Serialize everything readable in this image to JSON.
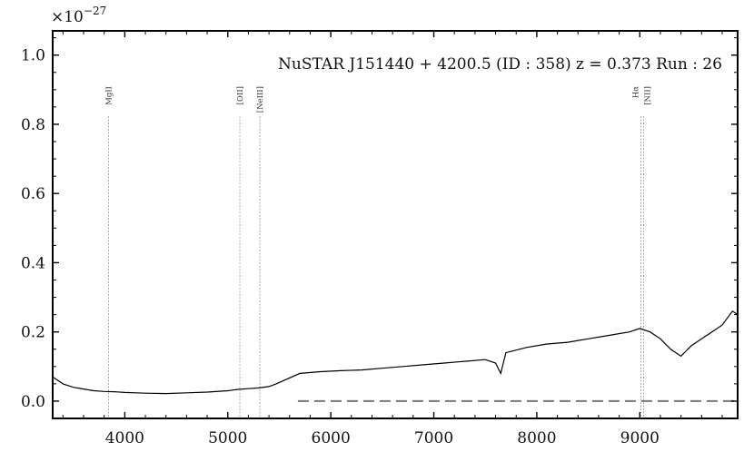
{
  "chart_data": {
    "type": "line",
    "title": "NuSTAR J151440 + 4200.5 (ID : 358)   z = 0.373   Run : 26",
    "xlabel": "",
    "ylabel": "",
    "y_multiplier": "×10",
    "y_multiplier_exponent": "−27",
    "xlim": [
      3300,
      9950
    ],
    "ylim": [
      -0.05,
      1.07
    ],
    "x_ticks": [
      4000,
      5000,
      6000,
      7000,
      8000,
      9000
    ],
    "x_tick_labels": [
      "4000",
      "5000",
      "6000",
      "7000",
      "8000",
      "9000"
    ],
    "y_ticks": [
      0.0,
      0.2,
      0.4,
      0.6,
      0.8,
      1.0
    ],
    "y_tick_labels": [
      "0.0",
      "0.2",
      "0.4",
      "0.6",
      "0.8",
      "1.0"
    ],
    "grid": false,
    "emission_lines": [
      {
        "label": "MgII",
        "x": 3842
      },
      {
        "label": "[OII]",
        "x": 5117
      },
      {
        "label": "[NeIII]",
        "x": 5311
      },
      {
        "label": "Hα",
        "x": 9011
      },
      {
        "label": "[NII]",
        "x": 9038
      }
    ],
    "series": [
      {
        "style": "solid",
        "color": "#000000",
        "x": [
          3300,
          3350,
          3400,
          3450,
          3500,
          3600,
          3700,
          3800,
          3900,
          4000,
          4200,
          4400,
          4600,
          4800,
          5000,
          5100,
          5200,
          5300,
          5400,
          5470,
          5700,
          5900,
          6100,
          6300,
          6500,
          6700,
          6900,
          7100,
          7300,
          7500,
          7600,
          7650,
          7700,
          7900,
          8100,
          8300,
          8500,
          8700,
          8900,
          9000,
          9100,
          9200,
          9300,
          9400,
          9500,
          9600,
          9700,
          9800,
          9900,
          9950
        ],
        "values": [
          0.07,
          0.06,
          0.05,
          0.045,
          0.04,
          0.035,
          0.03,
          0.028,
          0.027,
          0.025,
          0.023,
          0.022,
          0.024,
          0.026,
          0.03,
          0.034,
          0.036,
          0.038,
          0.042,
          0.05,
          0.08,
          0.085,
          0.088,
          0.09,
          0.095,
          0.1,
          0.105,
          0.11,
          0.115,
          0.12,
          0.11,
          0.08,
          0.14,
          0.155,
          0.165,
          0.17,
          0.18,
          0.19,
          0.2,
          0.21,
          0.2,
          0.18,
          0.15,
          0.13,
          0.16,
          0.18,
          0.2,
          0.22,
          0.26,
          0.25
        ]
      },
      {
        "style": "dashed",
        "color": "#777777",
        "x": [
          5680,
          9950
        ],
        "values": [
          0.0,
          0.0
        ]
      }
    ]
  }
}
